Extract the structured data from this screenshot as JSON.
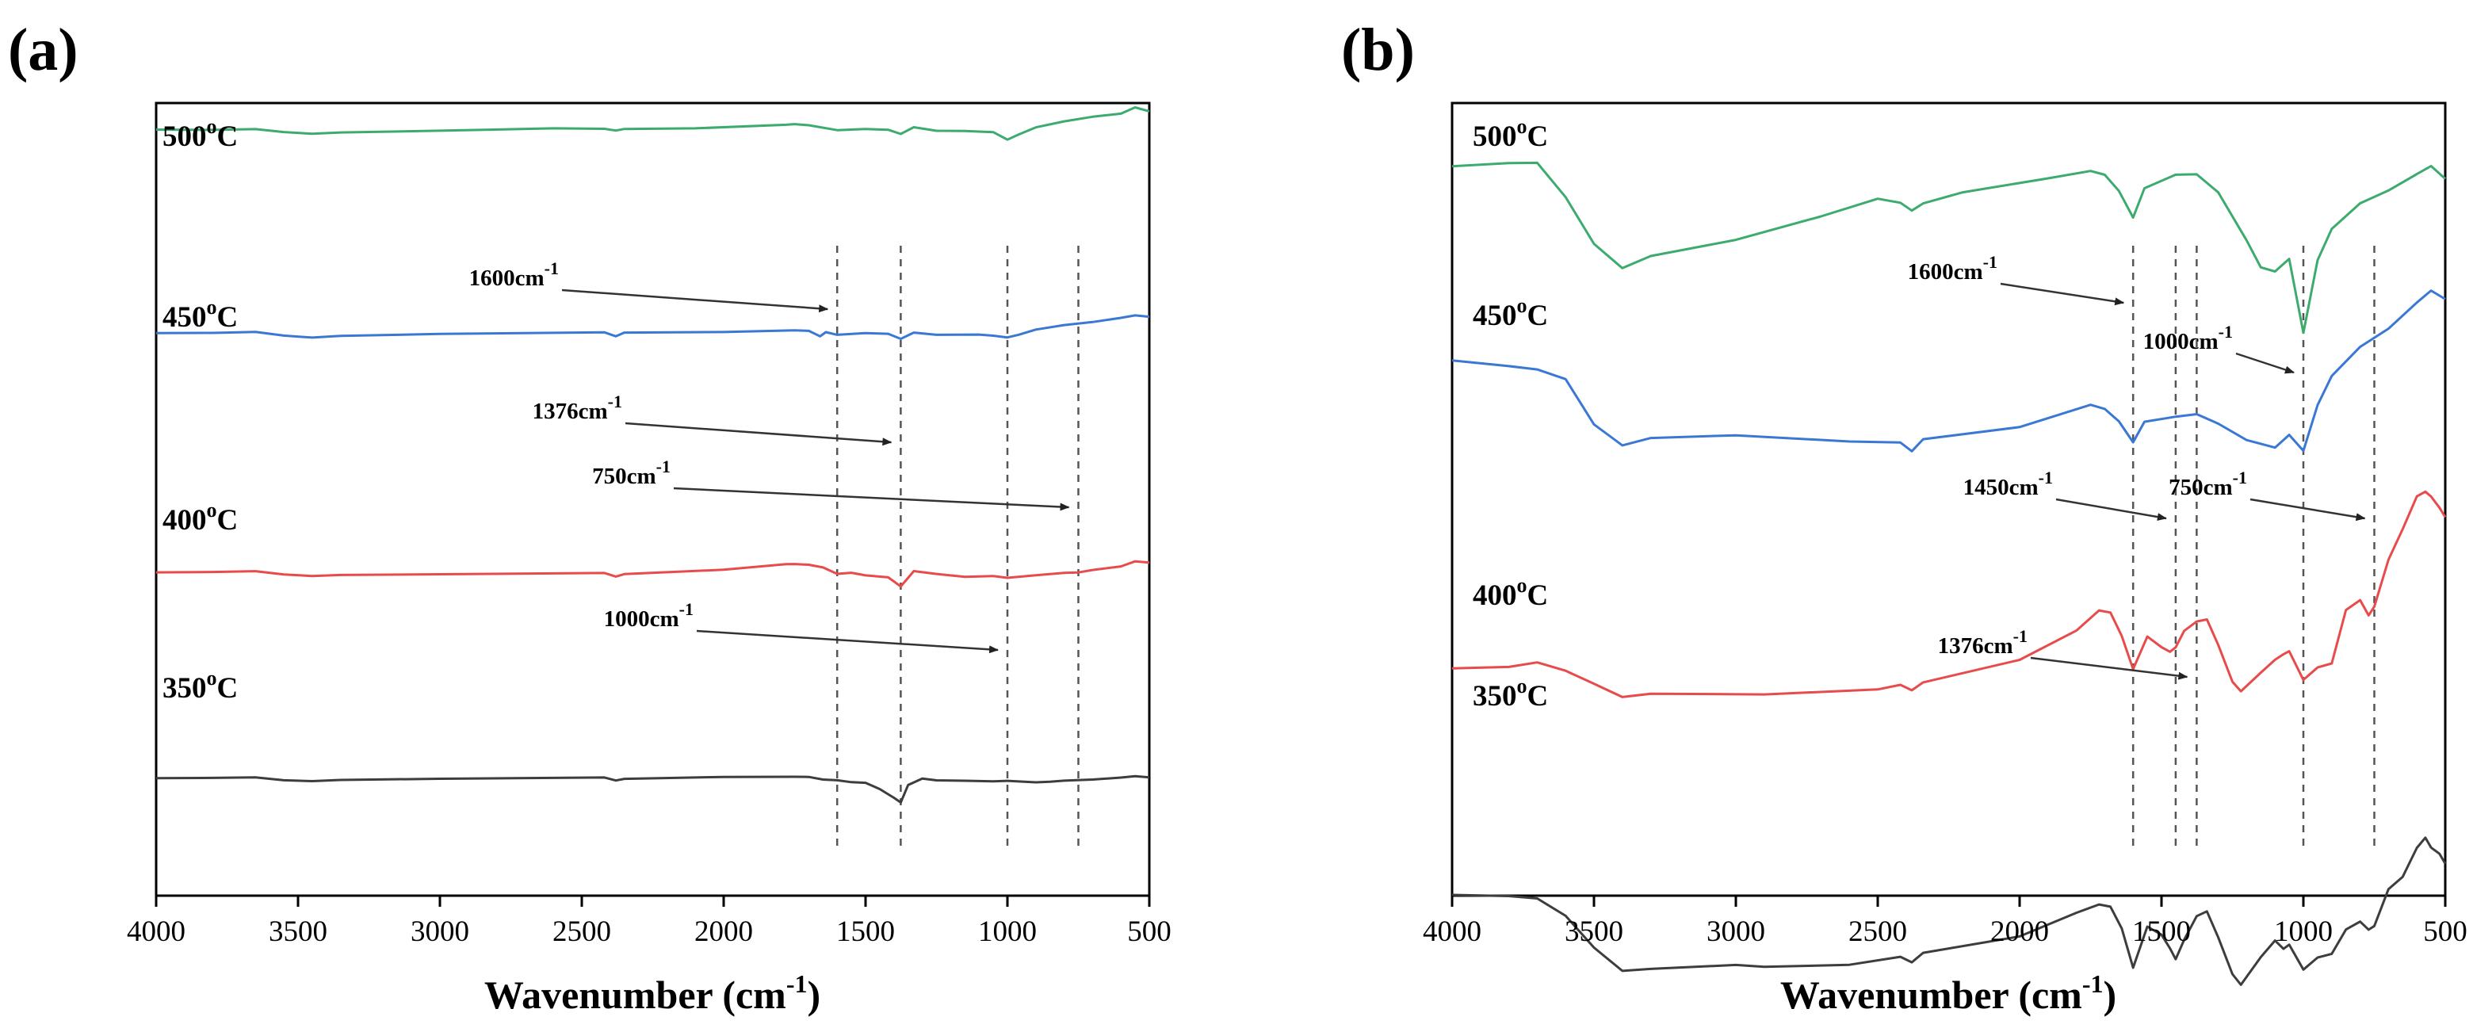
{
  "chart_data": [
    {
      "panel": "(a)",
      "type": "line",
      "xlabel": "Wavenumber (cm-1)",
      "xlabel_main": "Wavenumber (cm",
      "xlabel_sup": "-1",
      "xlabel_tail": ")",
      "xlim": [
        4000,
        500
      ],
      "x_reversed": true,
      "xticks": [
        4000,
        3500,
        3000,
        2500,
        2000,
        1500,
        1000,
        500
      ],
      "ylabel": "",
      "y_axis": "offset transmittance (no scale)",
      "reference_lines": [
        1600,
        1376,
        1000,
        750
      ],
      "annotations": [
        {
          "text": "1600cm",
          "sup": "-1",
          "target_x": 1600,
          "target_series": "450°C"
        },
        {
          "text": "1376cm",
          "sup": "-1",
          "target_x": 1376,
          "target_series": "450°C"
        },
        {
          "text": "750cm",
          "sup": "-1",
          "target_x": 750,
          "target_series": "400°C"
        },
        {
          "text": "1000cm",
          "sup": "-1",
          "target_x": 1000,
          "target_series": "350°C"
        }
      ],
      "series": [
        {
          "name": "500°C",
          "label_main": "500",
          "label_sup": "o",
          "label_tail": "C",
          "color": "#3dab6e",
          "x": [
            4000,
            3800,
            3650,
            3550,
            3450,
            3350,
            3000,
            2600,
            2420,
            2380,
            2350,
            2100,
            1780,
            1750,
            1700,
            1600,
            1500,
            1420,
            1376,
            1330,
            1250,
            1150,
            1050,
            1000,
            960,
            900,
            800,
            700,
            600,
            550,
            500
          ],
          "values": [
            0.83,
            0.83,
            0.84,
            0.79,
            0.76,
            0.78,
            0.82,
            0.85,
            0.84,
            0.81,
            0.84,
            0.86,
            0.91,
            0.92,
            0.9,
            0.82,
            0.84,
            0.83,
            0.76,
            0.86,
            0.82,
            0.82,
            0.8,
            0.68,
            0.76,
            0.87,
            0.96,
            1.03,
            1.08,
            1.18,
            1.12
          ]
        },
        {
          "name": "450°C",
          "label_main": "450",
          "label_sup": "o",
          "label_tail": "C",
          "color": "#3a78d4",
          "x": [
            4000,
            3800,
            3650,
            3550,
            3450,
            3350,
            3000,
            2420,
            2380,
            2350,
            2000,
            1750,
            1700,
            1660,
            1640,
            1600,
            1500,
            1420,
            1376,
            1330,
            1250,
            1100,
            1050,
            1000,
            960,
            900,
            800,
            700,
            600,
            550,
            500
          ],
          "values": [
            0.0,
            0.0,
            0.01,
            -0.05,
            -0.08,
            -0.05,
            -0.01,
            0.01,
            -0.06,
            0.01,
            0.02,
            0.04,
            0.03,
            -0.05,
            0.02,
            -0.03,
            0.0,
            -0.01,
            -0.1,
            0.0,
            -0.02,
            -0.02,
            -0.04,
            -0.07,
            -0.02,
            0.05,
            0.12,
            0.17,
            0.24,
            0.28,
            0.26
          ]
        },
        {
          "name": "400°C",
          "label_main": "400",
          "label_sup": "o",
          "label_tail": "C",
          "color": "#e84b4b",
          "x": [
            4000,
            3800,
            3650,
            3550,
            3450,
            3350,
            3000,
            2420,
            2380,
            2350,
            2000,
            1780,
            1750,
            1700,
            1650,
            1600,
            1550,
            1500,
            1420,
            1376,
            1330,
            1250,
            1150,
            1050,
            1000,
            900,
            800,
            750,
            700,
            600,
            550,
            500
          ],
          "values": [
            -0.4,
            -0.4,
            -0.39,
            -0.44,
            -0.46,
            -0.44,
            -0.43,
            -0.41,
            -0.47,
            -0.42,
            -0.36,
            -0.28,
            -0.27,
            -0.28,
            -0.32,
            -0.42,
            -0.4,
            -0.44,
            -0.48,
            -0.63,
            -0.38,
            -0.42,
            -0.47,
            -0.46,
            -0.49,
            -0.45,
            -0.41,
            -0.4,
            -0.36,
            -0.3,
            -0.22,
            -0.24
          ]
        },
        {
          "name": "350°C",
          "label_main": "350",
          "label_sup": "o",
          "label_tail": "C",
          "color": "#3d3d3d",
          "x": [
            4000,
            3800,
            3650,
            3550,
            3450,
            3350,
            3000,
            2420,
            2380,
            2350,
            2000,
            1750,
            1700,
            1650,
            1600,
            1550,
            1500,
            1450,
            1400,
            1376,
            1350,
            1300,
            1250,
            1150,
            1050,
            1000,
            900,
            850,
            800,
            700,
            600,
            550,
            500
          ],
          "values": [
            -0.9,
            -0.9,
            -0.89,
            -0.93,
            -0.94,
            -0.92,
            -0.91,
            -0.89,
            -0.93,
            -0.9,
            -0.88,
            -0.87,
            -0.87,
            -0.91,
            -0.92,
            -0.95,
            -0.96,
            -1.06,
            -1.2,
            -1.28,
            -1.0,
            -0.9,
            -0.93,
            -0.94,
            -0.95,
            -0.94,
            -0.96,
            -0.95,
            -0.93,
            -0.91,
            -0.88,
            -0.86,
            -0.88
          ]
        }
      ]
    },
    {
      "panel": "(b)",
      "type": "line",
      "xlabel": "Wavenumber (cm-1)",
      "xlabel_main": "Wavenumber (cm",
      "xlabel_sup": "-1",
      "xlabel_tail": ")",
      "xlim": [
        4000,
        500
      ],
      "x_reversed": true,
      "xticks": [
        4000,
        3500,
        3000,
        2500,
        2000,
        1500,
        1000,
        500
      ],
      "ylabel": "",
      "y_axis": "offset transmittance (no scale)",
      "reference_lines": [
        1600,
        1450,
        1376,
        1000,
        750
      ],
      "annotations": [
        {
          "text": "1600cm",
          "sup": "-1",
          "target_x": 1600,
          "target_series": "450°C"
        },
        {
          "text": "1000cm",
          "sup": "-1",
          "target_x": 1000,
          "target_series": "450°C"
        },
        {
          "text": "1450cm",
          "sup": "-1",
          "target_x": 1450,
          "target_series": "400°C"
        },
        {
          "text": "750cm",
          "sup": "-1",
          "target_x": 750,
          "target_series": "400°C"
        },
        {
          "text": "1376cm",
          "sup": "-1",
          "target_x": 1376,
          "target_series": "350°C"
        }
      ],
      "series": [
        {
          "name": "500°C",
          "label_main": "500",
          "label_sup": "o",
          "label_tail": "C",
          "color": "#3dab6e",
          "x": [
            4000,
            3800,
            3700,
            3600,
            3500,
            3400,
            3300,
            3000,
            2700,
            2500,
            2420,
            2380,
            2340,
            2200,
            1900,
            1750,
            1700,
            1650,
            1600,
            1560,
            1450,
            1376,
            1300,
            1200,
            1150,
            1100,
            1050,
            1000,
            950,
            900,
            800,
            700,
            600,
            550,
            500
          ],
          "values": [
            1.0,
            1.02,
            1.02,
            0.85,
            0.62,
            0.5,
            0.56,
            0.65,
            0.76,
            0.84,
            0.82,
            0.78,
            0.83,
            0.88,
            0.95,
            0.98,
            0.96,
            0.88,
            0.75,
            0.9,
            0.96,
            0.96,
            0.88,
            0.65,
            0.52,
            0.5,
            0.56,
            0.2,
            0.55,
            0.7,
            0.82,
            0.88,
            0.96,
            1.0,
            0.94
          ]
        },
        {
          "name": "450°C",
          "label_main": "450",
          "label_sup": "o",
          "label_tail": "C",
          "color": "#3a78d4",
          "x": [
            4000,
            3800,
            3700,
            3600,
            3500,
            3400,
            3300,
            3000,
            2600,
            2420,
            2380,
            2340,
            2000,
            1750,
            1700,
            1650,
            1600,
            1560,
            1450,
            1376,
            1300,
            1200,
            1100,
            1050,
            1000,
            950,
            900,
            800,
            700,
            600,
            550,
            500
          ],
          "values": [
            0.1,
            0.07,
            0.05,
            0.0,
            -0.22,
            -0.32,
            -0.28,
            -0.26,
            -0.3,
            -0.3,
            -0.35,
            -0.28,
            -0.22,
            -0.12,
            -0.14,
            -0.2,
            -0.3,
            -0.2,
            -0.17,
            -0.17,
            -0.2,
            -0.28,
            -0.32,
            -0.26,
            -0.34,
            -0.12,
            0.02,
            0.16,
            0.25,
            0.38,
            0.44,
            0.4
          ]
        },
        {
          "name": "400°C",
          "label_main": "400",
          "label_sup": "o",
          "label_tail": "C",
          "color": "#e84b4b",
          "x": [
            4000,
            3800,
            3700,
            3600,
            3500,
            3400,
            3300,
            2900,
            2500,
            2420,
            2380,
            2340,
            2000,
            1800,
            1720,
            1680,
            1640,
            1600,
            1550,
            1500,
            1470,
            1450,
            1420,
            1376,
            1340,
            1300,
            1250,
            1220,
            1150,
            1100,
            1070,
            1050,
            1000,
            950,
            900,
            850,
            800,
            770,
            750,
            700,
            650,
            600,
            570,
            550,
            520,
            500
          ],
          "values": [
            -0.78,
            -0.78,
            -0.76,
            -0.8,
            -0.86,
            -0.92,
            -0.9,
            -0.91,
            -0.88,
            -0.86,
            -0.89,
            -0.85,
            -0.74,
            -0.6,
            -0.5,
            -0.52,
            -0.62,
            -0.78,
            -0.62,
            -0.67,
            -0.7,
            -0.67,
            -0.6,
            -0.56,
            -0.55,
            -0.66,
            -0.84,
            -0.9,
            -0.8,
            -0.74,
            -0.72,
            -0.7,
            -0.84,
            -0.78,
            -0.76,
            -0.5,
            -0.45,
            -0.52,
            -0.48,
            -0.25,
            -0.1,
            0.06,
            0.08,
            0.06,
            0.0,
            -0.04
          ]
        },
        {
          "name": "350°C",
          "label_main": "350",
          "label_sup": "o",
          "label_tail": "C",
          "color": "#3d3d3d",
          "x": [
            4000,
            3800,
            3700,
            3600,
            3500,
            3400,
            3300,
            3000,
            2900,
            2600,
            2420,
            2380,
            2340,
            2000,
            1800,
            1720,
            1680,
            1640,
            1600,
            1550,
            1500,
            1470,
            1450,
            1420,
            1376,
            1340,
            1300,
            1250,
            1220,
            1150,
            1100,
            1070,
            1050,
            1000,
            950,
            900,
            850,
            800,
            770,
            750,
            700,
            650,
            600,
            570,
            550,
            520,
            500
          ],
          "values": [
            -1.0,
            -1.01,
            -1.02,
            -1.1,
            -1.25,
            -1.36,
            -1.35,
            -1.34,
            -1.35,
            -1.33,
            -1.3,
            -1.32,
            -1.28,
            -1.2,
            -1.08,
            -1.04,
            -1.06,
            -1.16,
            -1.34,
            -1.14,
            -1.18,
            -1.26,
            -1.3,
            -1.22,
            -1.1,
            -1.08,
            -1.2,
            -1.38,
            -1.44,
            -1.3,
            -1.22,
            -1.26,
            -1.24,
            -1.36,
            -1.3,
            -1.28,
            -1.16,
            -1.12,
            -1.16,
            -1.14,
            -0.96,
            -0.9,
            -0.76,
            -0.72,
            -0.76,
            -0.8,
            -0.84
          ]
        }
      ]
    }
  ]
}
